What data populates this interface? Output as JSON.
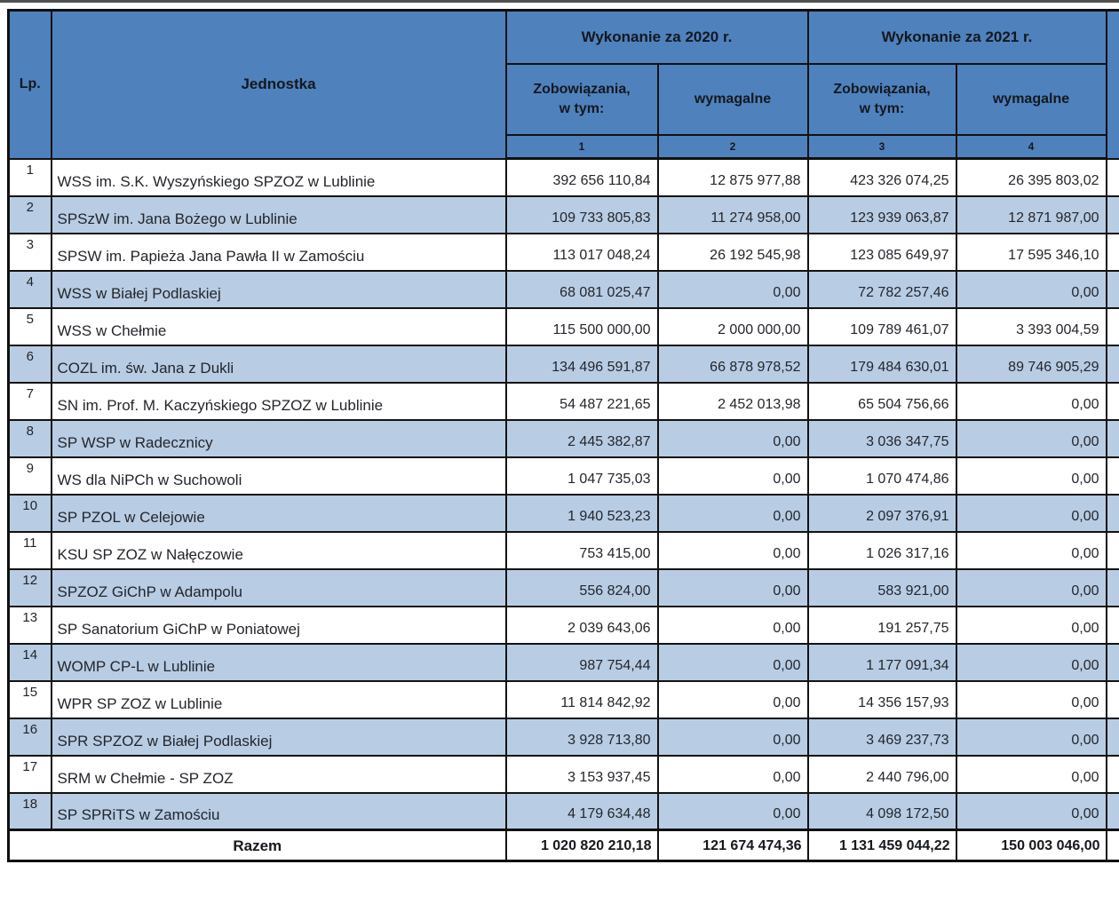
{
  "colors": {
    "header_blue": "#4f81bd",
    "stripe_blue": "#b8cce4",
    "border": "#121212",
    "text": "#23262b"
  },
  "header": {
    "lp": "Lp.",
    "jednostka": "Jednostka",
    "group_2020": "Wykonanie za 2020 r.",
    "group_2021": "Wykonanie za 2021 r.",
    "sub_zobowiazania": "Zobowiązania,\nw tym:",
    "sub_wymagalne": "wymagalne",
    "col_numbers": [
      "1",
      "2",
      "3",
      "4"
    ]
  },
  "rows": [
    {
      "lp": "1",
      "name": "WSS im. S.K. Wyszyńskiego SPZOZ w Lublinie",
      "c1": "392 656 110,84",
      "c2": "12 875 977,88",
      "c3": "423 326 074,25",
      "c4": "26 395 803,02"
    },
    {
      "lp": "2",
      "name": "SPSzW im. Jana Bożego w Lublinie",
      "c1": "109 733 805,83",
      "c2": "11 274 958,00",
      "c3": "123 939 063,87",
      "c4": "12 871 987,00"
    },
    {
      "lp": "3",
      "name": "SPSW im. Papieża Jana Pawła II w Zamościu",
      "c1": "113 017 048,24",
      "c2": "26 192 545,98",
      "c3": "123 085 649,97",
      "c4": "17 595 346,10"
    },
    {
      "lp": "4",
      "name": "WSS w Białej Podlaskiej",
      "c1": "68 081 025,47",
      "c2": "0,00",
      "c3": "72 782 257,46",
      "c4": "0,00"
    },
    {
      "lp": "5",
      "name": "WSS w Chełmie",
      "c1": "115 500 000,00",
      "c2": "2 000 000,00",
      "c3": "109 789 461,07",
      "c4": "3 393 004,59"
    },
    {
      "lp": "6",
      "name": "COZL im. św. Jana z Dukli",
      "c1": "134 496 591,87",
      "c2": "66 878 978,52",
      "c3": "179 484 630,01",
      "c4": "89 746 905,29"
    },
    {
      "lp": "7",
      "name": "SN im. Prof. M. Kaczyńskiego SPZOZ w Lublinie",
      "c1": "54 487 221,65",
      "c2": "2 452 013,98",
      "c3": "65 504 756,66",
      "c4": "0,00"
    },
    {
      "lp": "8",
      "name": "SP WSP w Radecznicy",
      "c1": "2 445 382,87",
      "c2": "0,00",
      "c3": "3 036 347,75",
      "c4": "0,00"
    },
    {
      "lp": "9",
      "name": "WS dla NiPCh w Suchowoli",
      "c1": "1 047 735,03",
      "c2": "0,00",
      "c3": "1 070 474,86",
      "c4": "0,00"
    },
    {
      "lp": "10",
      "name": "SP PZOL w Celejowie",
      "c1": "1 940 523,23",
      "c2": "0,00",
      "c3": "2 097 376,91",
      "c4": "0,00"
    },
    {
      "lp": "11",
      "name": "KSU SP ZOZ w Nałęczowie",
      "c1": "753 415,00",
      "c2": "0,00",
      "c3": "1 026 317,16",
      "c4": "0,00"
    },
    {
      "lp": "12",
      "name": "SPZOZ GiChP w Adampolu",
      "c1": "556 824,00",
      "c2": "0,00",
      "c3": "583 921,00",
      "c4": "0,00"
    },
    {
      "lp": "13",
      "name": "SP Sanatorium GiChP w Poniatowej",
      "c1": "2 039 643,06",
      "c2": "0,00",
      "c3": "191 257,75",
      "c4": "0,00"
    },
    {
      "lp": "14",
      "name": "WOMP CP-L w Lublinie",
      "c1": "987 754,44",
      "c2": "0,00",
      "c3": "1 177 091,34",
      "c4": "0,00"
    },
    {
      "lp": "15",
      "name": "WPR SP ZOZ  w Lublinie",
      "c1": "11 814 842,92",
      "c2": "0,00",
      "c3": "14 356 157,93",
      "c4": "0,00"
    },
    {
      "lp": "16",
      "name": "SPR SPZOZ w Białej Podlaskiej",
      "c1": "3 928 713,80",
      "c2": "0,00",
      "c3": "3 469 237,73",
      "c4": "0,00"
    },
    {
      "lp": "17",
      "name": "SRM w Chełmie - SP ZOZ",
      "c1": "3 153 937,45",
      "c2": "0,00",
      "c3": "2 440 796,00",
      "c4": "0,00"
    },
    {
      "lp": "18",
      "name": "SP SPRiTS w Zamościu",
      "c1": "4 179 634,48",
      "c2": "0,00",
      "c3": "4 098 172,50",
      "c4": "0,00"
    }
  ],
  "total": {
    "label": "Razem",
    "c1": "1 020 820 210,18",
    "c2": "121 674 474,36",
    "c3": "1 131 459 044,22",
    "c4": "150 003 046,00"
  }
}
